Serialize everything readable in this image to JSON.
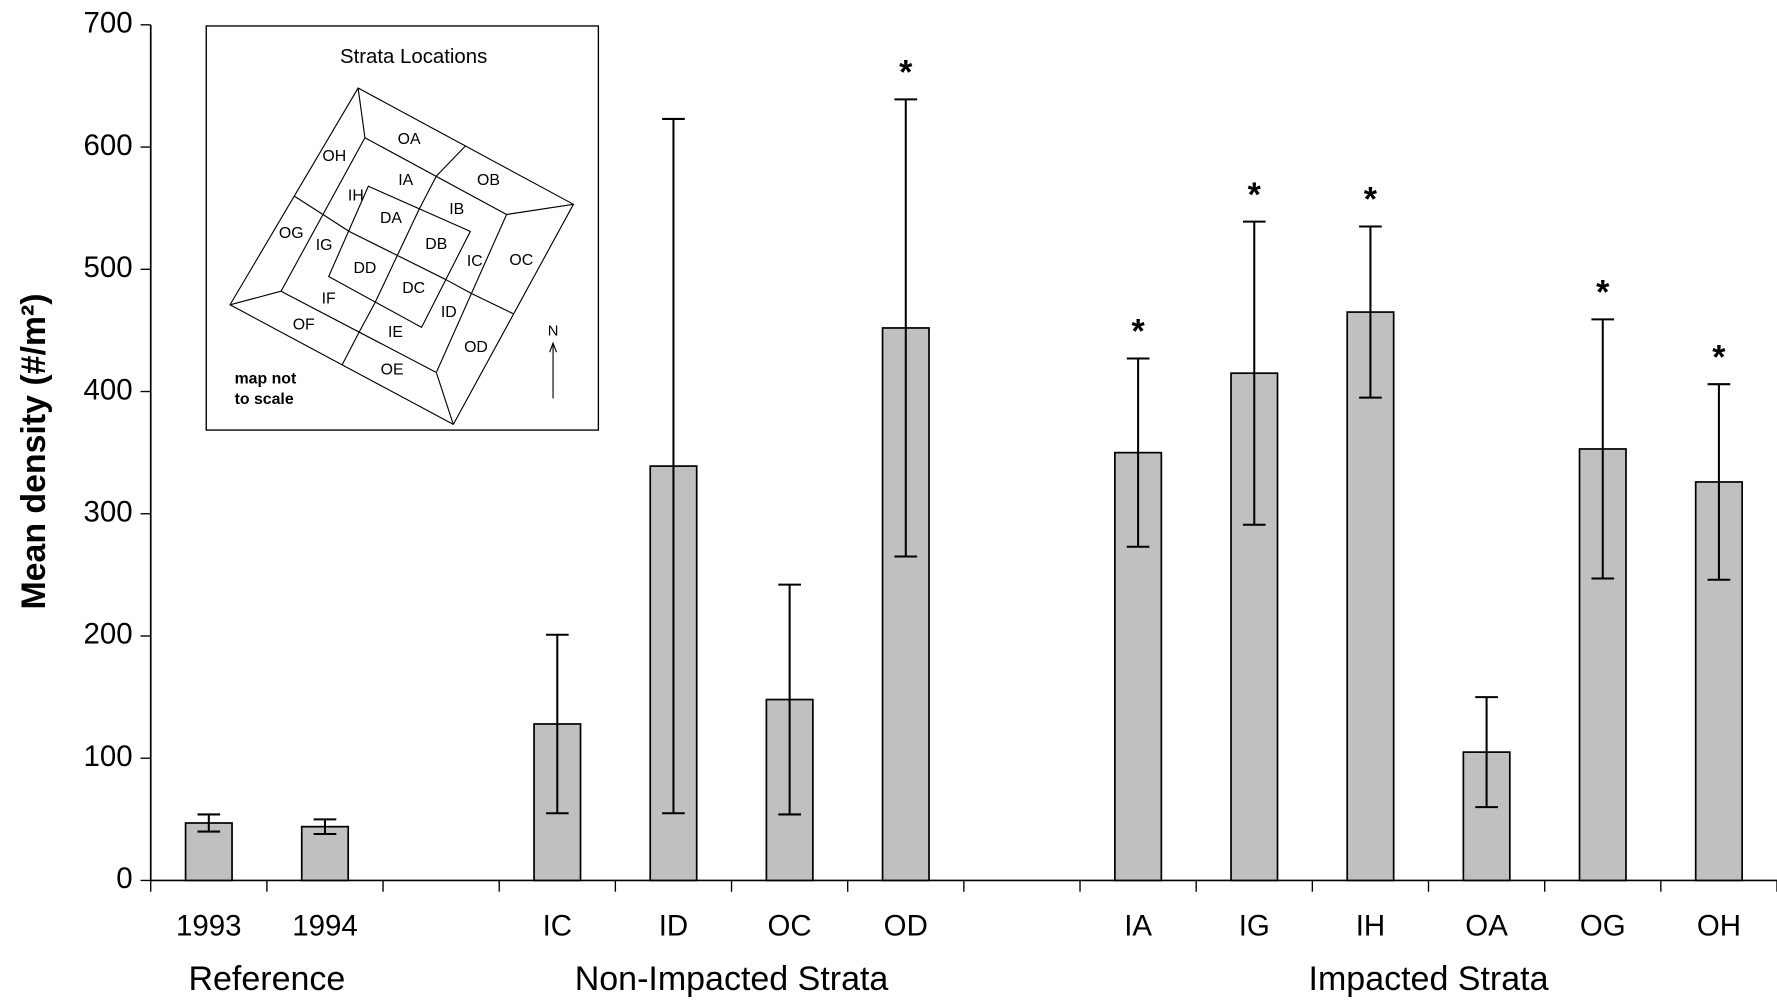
{
  "chart_data": {
    "type": "bar",
    "y_label": "Mean density (#/m²)",
    "categories": [
      "1993",
      "1994",
      null,
      "IC",
      "ID",
      "OC",
      "OD",
      null,
      "IA",
      "IG",
      "IH",
      "OA",
      "OG",
      "OH"
    ],
    "values": [
      47,
      44,
      null,
      128,
      339,
      148,
      452,
      null,
      350,
      415,
      465,
      105,
      353,
      326
    ],
    "errors": [
      7,
      6,
      null,
      73,
      284,
      94,
      187,
      null,
      77,
      124,
      70,
      45,
      106,
      80
    ],
    "color": "#c0c0c0",
    "ylim": [
      0,
      700
    ],
    "yticks": [
      0,
      100,
      200,
      300,
      400,
      500,
      600,
      700
    ],
    "grid": false,
    "annotations": [
      {
        "text": "*",
        "category": "OD"
      },
      {
        "text": "*",
        "category": "IA"
      },
      {
        "text": "*",
        "category": "IG"
      },
      {
        "text": "*",
        "category": "IH"
      },
      {
        "text": "*",
        "category": "OG"
      },
      {
        "text": "*",
        "category": "OH"
      }
    ],
    "groups": [
      {
        "label": "Reference",
        "from": "1993",
        "to": "1994"
      },
      {
        "label": "Non-Impacted Strata",
        "from": "IC",
        "to": "OD"
      },
      {
        "label": "Impacted Strata",
        "from": "IA",
        "to": "OH"
      }
    ],
    "inset": {
      "title": "Strata Locations",
      "note": [
        "map not",
        "to scale"
      ],
      "north": "N",
      "labels": [
        "OA",
        "OB",
        "OH",
        "IA",
        "IB",
        "IH",
        "DA",
        "DB",
        "OG",
        "IG",
        "IC",
        "OC",
        "DD",
        "DC",
        "IF",
        "ID",
        "OF",
        "IE",
        "OD",
        "OE"
      ]
    }
  }
}
